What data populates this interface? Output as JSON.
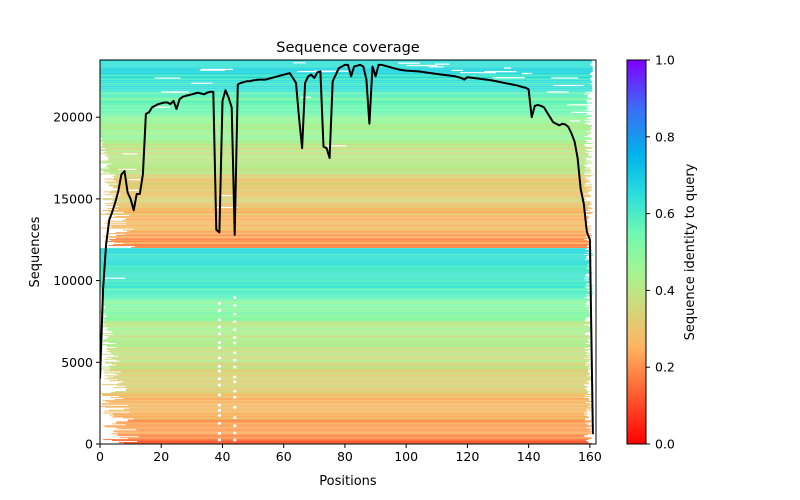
{
  "chart_data": {
    "type": "heatmap",
    "title": "Sequence coverage",
    "xlabel": "Positions",
    "ylabel": "Sequences",
    "xlim": [
      0,
      162
    ],
    "ylim": [
      0,
      23500
    ],
    "xticks": [
      0,
      20,
      40,
      60,
      80,
      100,
      120,
      140,
      160
    ],
    "xtick_labels": [
      "0",
      "20",
      "40",
      "60",
      "80",
      "100",
      "120",
      "140",
      "160"
    ],
    "yticks": [
      0,
      5000,
      10000,
      15000,
      20000
    ],
    "ytick_labels": [
      "0",
      "5000",
      "10000",
      "15000",
      "20000"
    ],
    "grid": false,
    "colorbar": {
      "label": "Sequence identity to query",
      "colormap": "rainbow_r",
      "range": [
        0.0,
        1.0
      ],
      "ticks": [
        0.0,
        0.2,
        0.4,
        0.6,
        0.8,
        1.0
      ],
      "tick_labels": [
        "0.0",
        "0.2",
        "0.4",
        "0.6",
        "0.8",
        "1.0"
      ],
      "stops": [
        {
          "v": 0.0,
          "color": "#ff0000"
        },
        {
          "v": 0.125,
          "color": "#ff5a2e"
        },
        {
          "v": 0.25,
          "color": "#ffb360"
        },
        {
          "v": 0.35,
          "color": "#d4d67a"
        },
        {
          "v": 0.45,
          "color": "#a4f593"
        },
        {
          "v": 0.55,
          "color": "#6ef9b2"
        },
        {
          "v": 0.65,
          "color": "#2adddd"
        },
        {
          "v": 0.75,
          "color": "#00b5eb"
        },
        {
          "v": 0.875,
          "color": "#3d6cf6"
        },
        {
          "v": 1.0,
          "color": "#8000ff"
        }
      ]
    },
    "identity_bands": [
      {
        "seq_from": 0,
        "seq_to": 300,
        "identity": 0.15
      },
      {
        "seq_from": 300,
        "seq_to": 1500,
        "identity": 0.22
      },
      {
        "seq_from": 1500,
        "seq_to": 3000,
        "identity": 0.27
      },
      {
        "seq_from": 3000,
        "seq_to": 4500,
        "identity": 0.33
      },
      {
        "seq_from": 4500,
        "seq_to": 6000,
        "identity": 0.38
      },
      {
        "seq_from": 6000,
        "seq_to": 7500,
        "identity": 0.43
      },
      {
        "seq_from": 7500,
        "seq_to": 8800,
        "identity": 0.5
      },
      {
        "seq_from": 8800,
        "seq_to": 10500,
        "identity": 0.6
      },
      {
        "seq_from": 10500,
        "seq_to": 12000,
        "identity": 0.63
      },
      {
        "seq_from": 12000,
        "seq_to": 13000,
        "identity": 0.22
      },
      {
        "seq_from": 13000,
        "seq_to": 14500,
        "identity": 0.27
      },
      {
        "seq_from": 14500,
        "seq_to": 16500,
        "identity": 0.32
      },
      {
        "seq_from": 16500,
        "seq_to": 18500,
        "identity": 0.4
      },
      {
        "seq_from": 18500,
        "seq_to": 20000,
        "identity": 0.46
      },
      {
        "seq_from": 20000,
        "seq_to": 21500,
        "identity": 0.55
      },
      {
        "seq_from": 21500,
        "seq_to": 23500,
        "identity": 0.64
      }
    ],
    "coverage_line": {
      "name": "coverage",
      "color": "#000000",
      "x": [
        0,
        1,
        2,
        3,
        4,
        5,
        6,
        7,
        8,
        9,
        10,
        11,
        12,
        13,
        14,
        15,
        16,
        17,
        18,
        19,
        20,
        21,
        22,
        23,
        24,
        25,
        26,
        27,
        28,
        29,
        30,
        31,
        32,
        33,
        34,
        35,
        36,
        37,
        38,
        39,
        40,
        41,
        42,
        43,
        44,
        45,
        46,
        47,
        48,
        49,
        50,
        52,
        54,
        56,
        58,
        60,
        62,
        64,
        65,
        66,
        67,
        68,
        69,
        70,
        71,
        72,
        73,
        74,
        75,
        76,
        77,
        78,
        79,
        80,
        81,
        82,
        83,
        84,
        85,
        86,
        87,
        88,
        89,
        90,
        91,
        92,
        93,
        94,
        96,
        98,
        100,
        104,
        108,
        112,
        116,
        118,
        119,
        120,
        124,
        128,
        132,
        136,
        138,
        139,
        140,
        141,
        142,
        143,
        144,
        145,
        146,
        148,
        150,
        151,
        152,
        153,
        154,
        155,
        156,
        157,
        158,
        159,
        160,
        161
      ],
      "y": [
        4000,
        9500,
        12200,
        13700,
        14200,
        14800,
        15500,
        16500,
        16700,
        15400,
        15000,
        14300,
        15300,
        15300,
        16500,
        20200,
        20300,
        20600,
        20700,
        20800,
        20850,
        20900,
        20900,
        20800,
        21000,
        20500,
        21100,
        21250,
        21300,
        21350,
        21400,
        21450,
        21500,
        21450,
        21400,
        21500,
        21550,
        21550,
        13100,
        12950,
        21000,
        21650,
        21200,
        20600,
        12800,
        22000,
        22100,
        22150,
        22200,
        22200,
        22250,
        22300,
        22300,
        22400,
        22500,
        22600,
        22700,
        22100,
        20000,
        18100,
        22100,
        22500,
        22600,
        22400,
        22750,
        22800,
        18200,
        18100,
        17500,
        22200,
        22600,
        23000,
        23100,
        23200,
        23200,
        22500,
        23100,
        23150,
        23200,
        23100,
        22300,
        19600,
        23100,
        22500,
        23200,
        23200,
        23150,
        23100,
        23000,
        22900,
        22850,
        22800,
        22700,
        22600,
        22500,
        22400,
        22300,
        22450,
        22350,
        22250,
        22100,
        21950,
        21850,
        21800,
        21700,
        20000,
        20700,
        20750,
        20700,
        20600,
        20300,
        19700,
        19500,
        19600,
        19550,
        19400,
        19000,
        18500,
        17500,
        15600,
        14700,
        13000,
        12500,
        600
      ]
    }
  }
}
